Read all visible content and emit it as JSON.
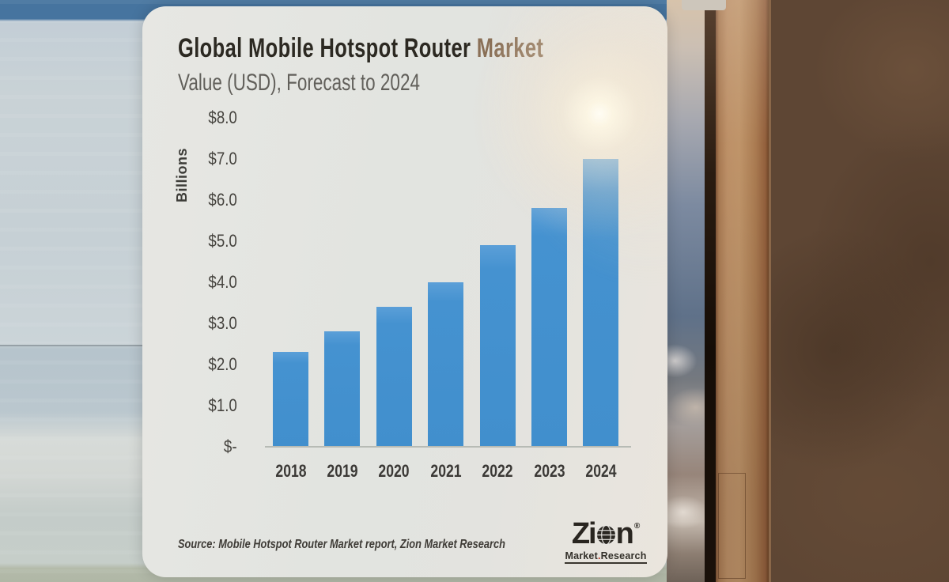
{
  "card": {
    "title": {
      "main": "Global Mobile Hotspot Router",
      "accent": "Market"
    },
    "subtitle": "Value (USD), Forecast to 2024",
    "source": "Source: Mobile Hotspot Router Market report, Zion Market Research",
    "logo": {
      "z": "Z",
      "i": "i",
      "n": "n",
      "registered": "®",
      "tagline_market": "Market",
      "tagline_dot": ".",
      "tagline_research": "Research"
    }
  },
  "chart_data": {
    "type": "bar",
    "title": "Global Mobile Hotspot Router Market",
    "subtitle": "Value (USD), Forecast to 2024",
    "unit": "USD Billions",
    "categories": [
      "2018",
      "2019",
      "2020",
      "2021",
      "2022",
      "2023",
      "2024"
    ],
    "values": [
      2.3,
      2.8,
      3.4,
      4.0,
      4.9,
      5.8,
      7.0
    ],
    "ylabel": "Billions",
    "xlabel": "",
    "ylim": [
      0,
      8
    ],
    "yticks": [
      {
        "label": "$8.0",
        "value": 8
      },
      {
        "label": "$7.0",
        "value": 7
      },
      {
        "label": "$6.0",
        "value": 6
      },
      {
        "label": "$5.0",
        "value": 5
      },
      {
        "label": "$4.0",
        "value": 4
      },
      {
        "label": "$3.0",
        "value": 3
      },
      {
        "label": "$2.0",
        "value": 2
      },
      {
        "label": "$1.0",
        "value": 1
      },
      {
        "label": "$-",
        "value": 0
      }
    ],
    "bar_color": "#4592d0",
    "grid": false,
    "legend": false
  }
}
